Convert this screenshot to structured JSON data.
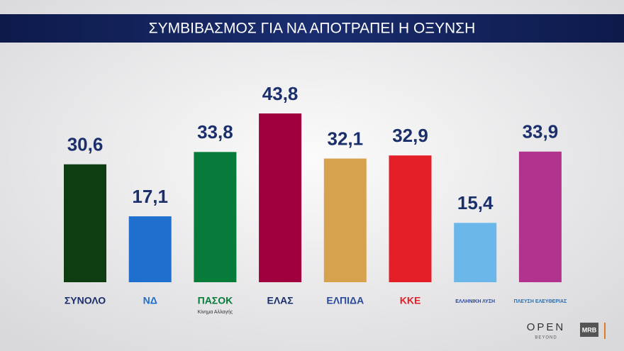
{
  "chart_data": {
    "type": "bar",
    "title": "ΣΥΜΒΙΒΑΣΜΟΣ ΓΙΑ ΝΑ ΑΠΟΤΡΑΠΕΙ Η ΟΞΥΝΣΗ",
    "categories": [
      "ΣΥΝΟΛΟ",
      "ΝΔ",
      "ΠΑΣΟΚ",
      "ΕΛΑΣ",
      "ΕΛΠΙΔΑ",
      "ΚΚΕ",
      "ΕΛΛΗΝΙΚΗ ΛΥΣΗ",
      "ΠΛΕΥΣΗ ΕΛΕΥΘΕΡΙΑΣ"
    ],
    "category_notes": [
      null,
      null,
      "Κίνημα Αλλαγής",
      null,
      null,
      null,
      null,
      null
    ],
    "values": [
      30.6,
      17.1,
      33.8,
      43.8,
      32.1,
      32.9,
      15.4,
      33.9
    ],
    "value_labels": [
      "30,6",
      "17,1",
      "33,8",
      "43,8",
      "32,1",
      "32,9",
      "15,4",
      "33,9"
    ],
    "colors": [
      "#0e3d12",
      "#1f6fcf",
      "#077b3a",
      "#a0003e",
      "#d7a24e",
      "#e41f28",
      "#6cb7e9",
      "#b2338e"
    ],
    "label_colors": [
      "#1b2f6b",
      "#1f6fcf",
      "#077b3a",
      "#1b2f6b",
      "#2a4a9a",
      "#e41f28",
      "#2a4a9a",
      "#2a6fb0"
    ]
  },
  "footer": {
    "brand": "OPEN",
    "brand_sub": "BEYOND",
    "source": "MRB"
  }
}
